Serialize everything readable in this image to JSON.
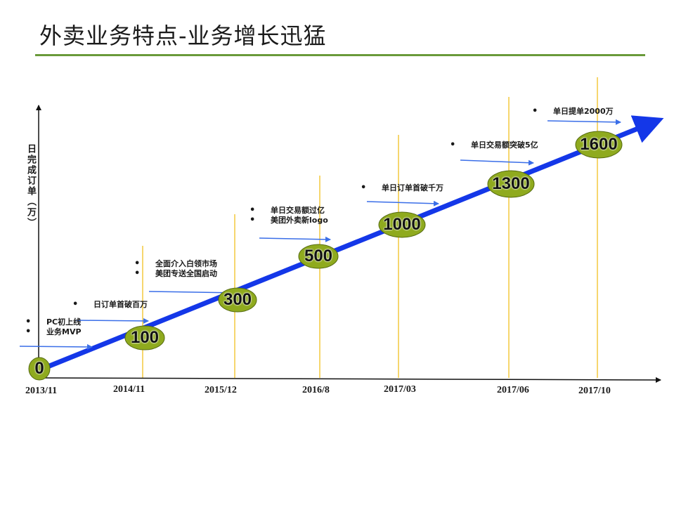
{
  "title": "外卖业务特点-业务增长迅猛",
  "y_axis_label": "日完成订单（万）",
  "colors": {
    "title_rule": "#6a9a3a",
    "trend_arrow": "#1437e8",
    "vertical_guides": "#f0c020",
    "small_arrows": "#3a6ee8",
    "badge_fill": "#8faa1e"
  },
  "milestones": [
    {
      "date": "2013/11",
      "value": "0"
    },
    {
      "date": "2014/11",
      "value": "100"
    },
    {
      "date": "2015/12",
      "value": "300"
    },
    {
      "date": "2016/8",
      "value": "500"
    },
    {
      "date": "2017/03",
      "value": "1000"
    },
    {
      "date": "2017/06",
      "value": "1300"
    },
    {
      "date": "2017/10",
      "value": "1600"
    }
  ],
  "notes": [
    {
      "lines": [
        "PC初上线",
        "业务MVP"
      ]
    },
    {
      "lines": [
        "日订单首破百万"
      ]
    },
    {
      "lines": [
        "全面介入白领市场",
        "美团专送全国启动"
      ]
    },
    {
      "lines": [
        "单日交易额过亿",
        "美团外卖新logo"
      ]
    },
    {
      "lines": [
        "单日订单首破千万"
      ]
    },
    {
      "lines": [
        "单日交易额突破5亿"
      ]
    },
    {
      "lines": [
        "单日提单2000万"
      ]
    }
  ]
}
